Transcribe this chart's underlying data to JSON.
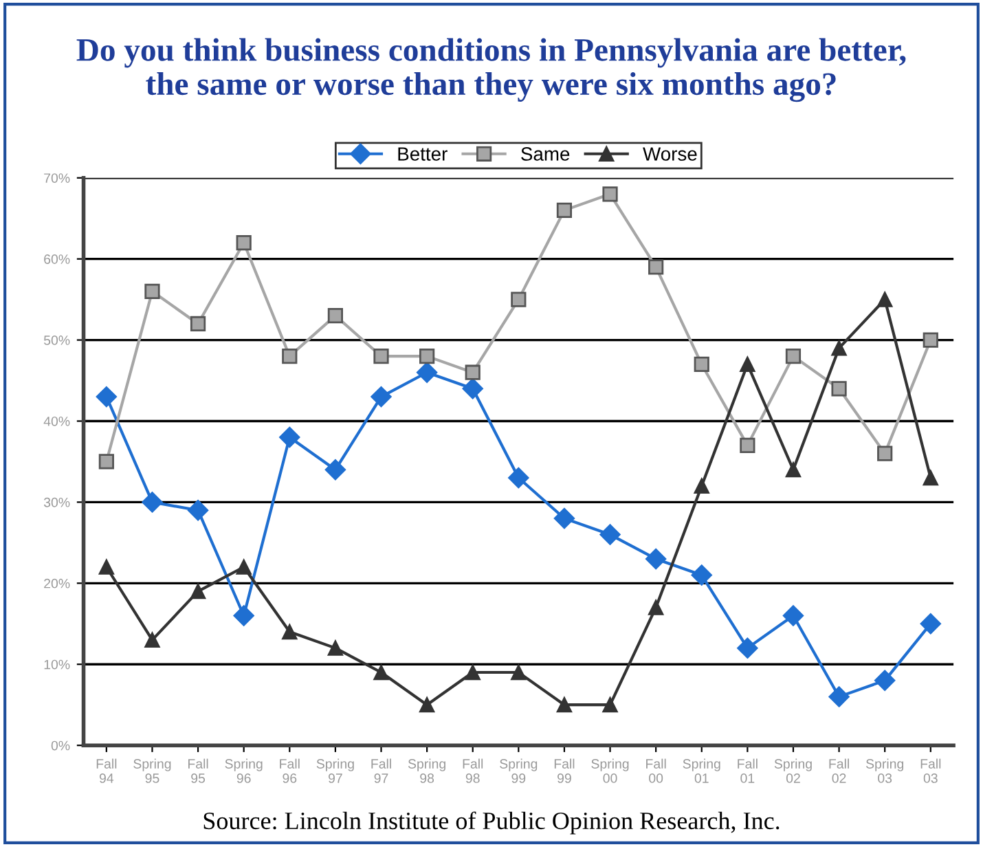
{
  "chart_data": {
    "type": "line",
    "title": "Do you think business conditions in Pennsylvania are better,\nthe same or worse than they were six months ago?",
    "categories": [
      "Fall\n94",
      "Spring\n95",
      "Fall\n95",
      "Spring\n96",
      "Fall\n96",
      "Spring\n97",
      "Fall\n97",
      "Spring\n98",
      "Fall\n98",
      "Spring\n99",
      "Fall\n99",
      "Spring\n00",
      "Fall\n00",
      "Spring\n01",
      "Fall\n01",
      "Spring\n02",
      "Fall\n02",
      "Spring\n03",
      "Fall\n03"
    ],
    "series": [
      {
        "name": "Better",
        "color": "#1f6fd1",
        "marker": "diamond",
        "values": [
          43,
          30,
          29,
          16,
          38,
          34,
          43,
          46,
          44,
          33,
          28,
          26,
          23,
          21,
          12,
          16,
          6,
          8,
          15
        ]
      },
      {
        "name": "Same",
        "color": "#a6a6a6",
        "marker": "square",
        "values": [
          35,
          56,
          52,
          62,
          48,
          53,
          48,
          48,
          46,
          55,
          66,
          68,
          59,
          47,
          37,
          48,
          44,
          36,
          50
        ]
      },
      {
        "name": "Worse",
        "color": "#333333",
        "marker": "triangle",
        "values": [
          22,
          13,
          19,
          22,
          14,
          12,
          9,
          5,
          9,
          9,
          5,
          5,
          17,
          32,
          47,
          34,
          49,
          55,
          33
        ]
      }
    ],
    "ylim": [
      0,
      70
    ],
    "yticks": [
      {
        "value": 0,
        "label": "0%"
      },
      {
        "value": 10,
        "label": "10%"
      },
      {
        "value": 20,
        "label": "20%"
      },
      {
        "value": 30,
        "label": "30%"
      },
      {
        "value": 40,
        "label": "40%"
      },
      {
        "value": 50,
        "label": "50%"
      },
      {
        "value": 60,
        "label": "60%"
      },
      {
        "value": 70,
        "label": "70%"
      }
    ],
    "grid": "y",
    "legend": "top",
    "annotations": [
      "Source: Lincoln Institute of Public Opinion Research, Inc."
    ]
  }
}
